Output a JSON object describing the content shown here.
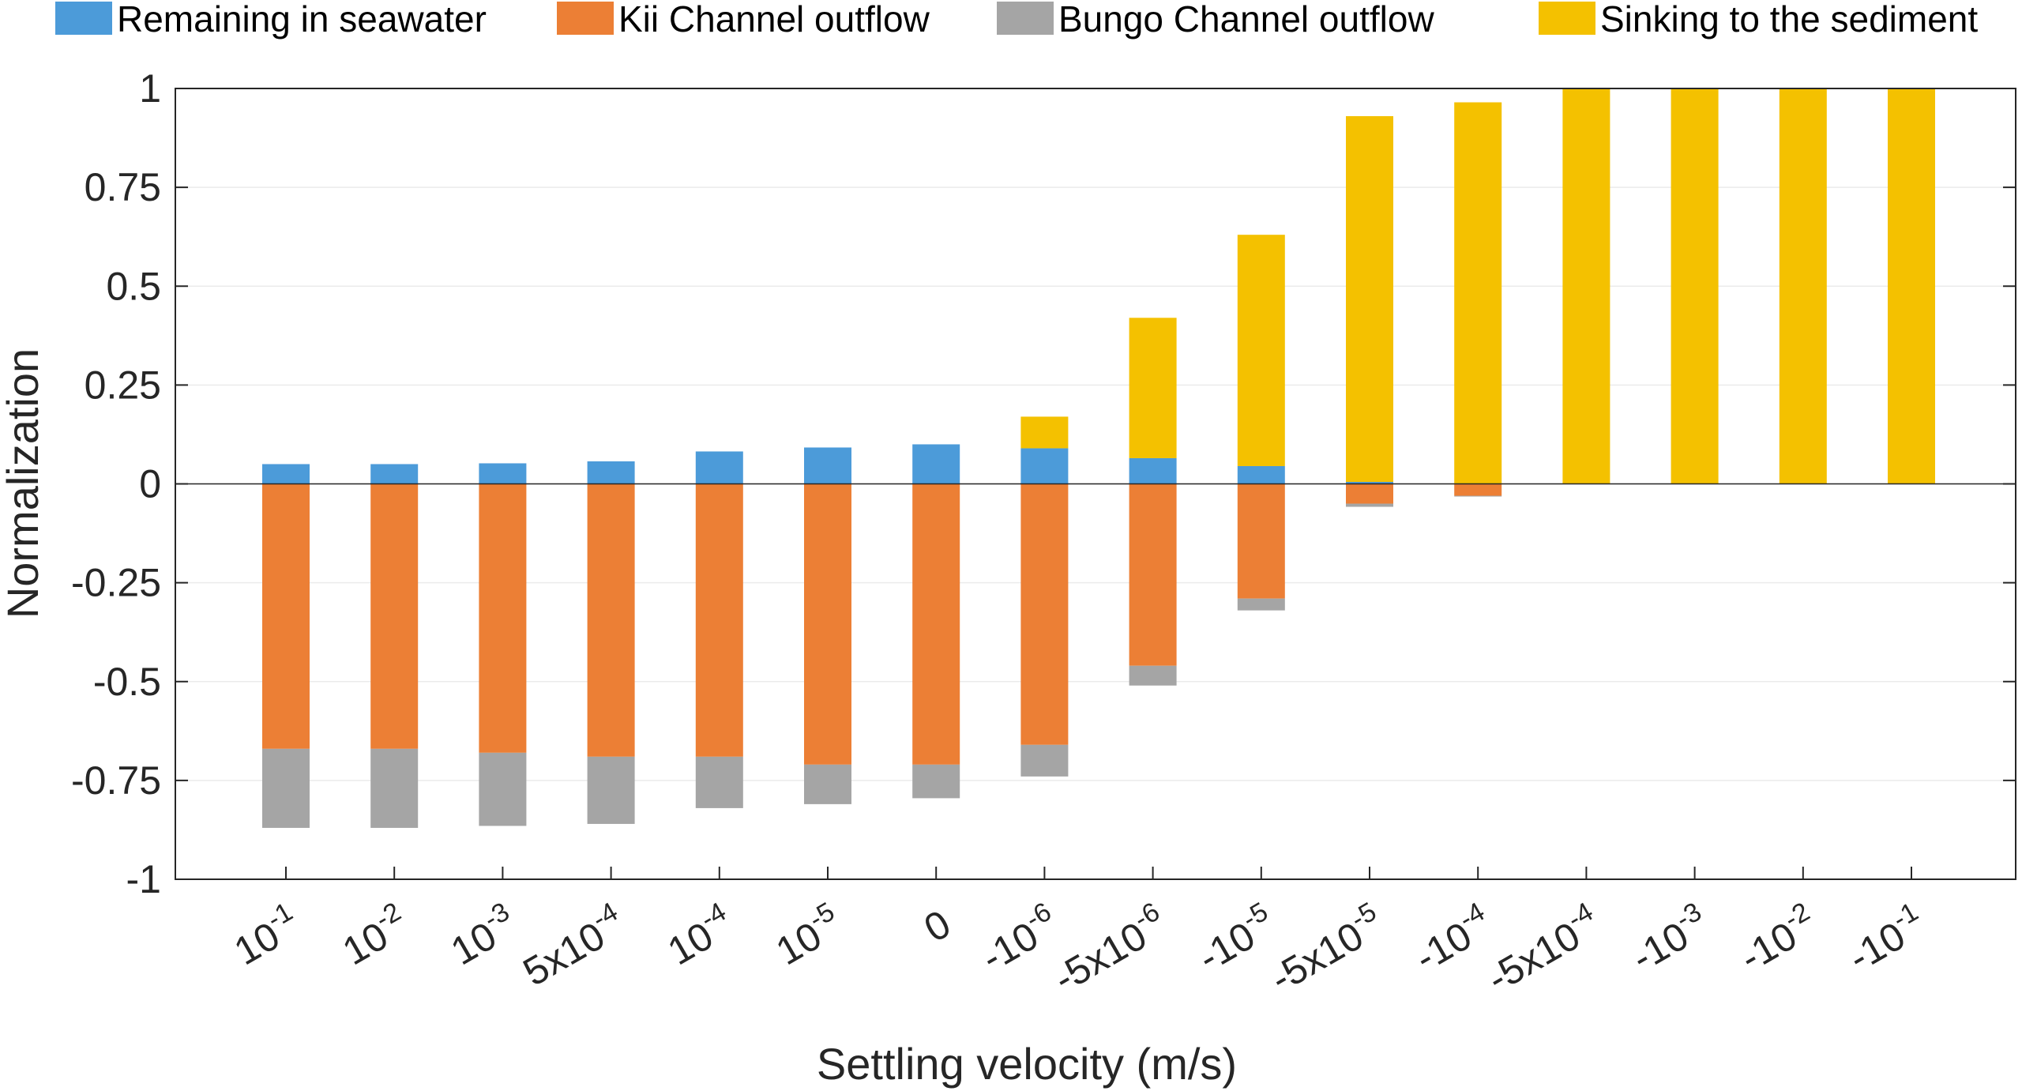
{
  "chart_data": {
    "type": "bar",
    "stacked": true,
    "title": "",
    "xlabel": "Settling velocity (m/s)",
    "ylabel": "Normalization",
    "ylim": [
      -1,
      1
    ],
    "yticks": [
      1,
      0.75,
      0.5,
      0.25,
      0,
      -0.25,
      -0.5,
      -0.75,
      -1
    ],
    "ytick_labels": [
      "1",
      "0.75",
      "0.5",
      "0.25",
      "0",
      "-0.25",
      "-0.5",
      "-0.75",
      "-1"
    ],
    "grid": "horizontal",
    "legend_position": "top",
    "categories": [
      {
        "base": "10",
        "exp": "-1"
      },
      {
        "base": "10",
        "exp": "-2"
      },
      {
        "base": "10",
        "exp": "-3"
      },
      {
        "base": "5x10",
        "exp": "-4"
      },
      {
        "base": "10",
        "exp": "-4"
      },
      {
        "base": "10",
        "exp": "-5"
      },
      {
        "base": "0",
        "exp": ""
      },
      {
        "base": "-10",
        "exp": "-6"
      },
      {
        "base": "-5x10",
        "exp": "-6"
      },
      {
        "base": "-10",
        "exp": "-5"
      },
      {
        "base": "-5x10",
        "exp": "-5"
      },
      {
        "base": "-10",
        "exp": "-4"
      },
      {
        "base": "-5x10",
        "exp": "-4"
      },
      {
        "base": "-10",
        "exp": "-3"
      },
      {
        "base": "-10",
        "exp": "-2"
      },
      {
        "base": "-10",
        "exp": "-1"
      }
    ],
    "series": [
      {
        "name": "Remaining in seawater",
        "color": "#4C9BD9",
        "direction": "up",
        "values": [
          0.05,
          0.05,
          0.052,
          0.057,
          0.082,
          0.092,
          0.1,
          0.09,
          0.065,
          0.045,
          0.005,
          0,
          0,
          0,
          0,
          0
        ]
      },
      {
        "name": "Kii Channel outflow",
        "color": "#EC7F35",
        "direction": "down",
        "values": [
          0.67,
          0.67,
          0.68,
          0.69,
          0.69,
          0.71,
          0.71,
          0.66,
          0.46,
          0.29,
          0.05,
          0.03,
          0,
          0,
          0,
          0
        ]
      },
      {
        "name": "Bungo Channel outflow",
        "color": "#A5A5A5",
        "direction": "down",
        "values": [
          0.2,
          0.2,
          0.185,
          0.17,
          0.13,
          0.1,
          0.085,
          0.08,
          0.05,
          0.03,
          0.008,
          0.002,
          0,
          0,
          0,
          0
        ]
      },
      {
        "name": "Sinking to the sediment",
        "color": "#F4C100",
        "direction": "up",
        "values": [
          0,
          0,
          0,
          0,
          0,
          0,
          0,
          0.08,
          0.355,
          0.585,
          0.925,
          0.965,
          1,
          1,
          1,
          1
        ]
      }
    ]
  }
}
